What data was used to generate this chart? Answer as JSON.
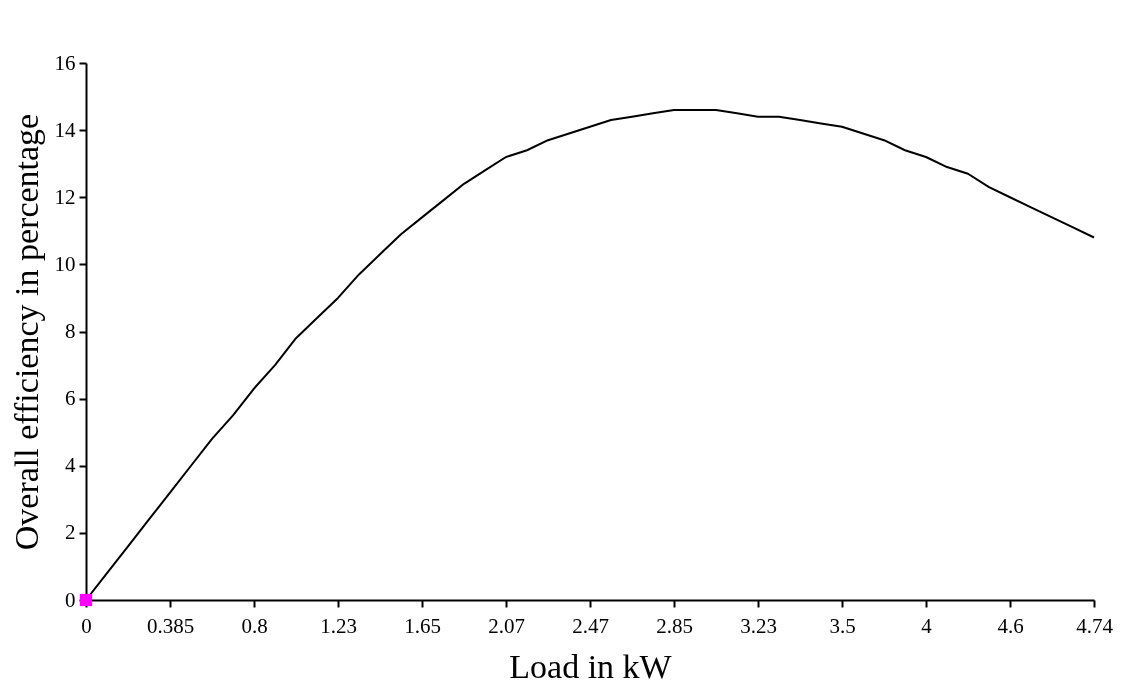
{
  "chart_data": {
    "type": "line",
    "xlabel": "Load in kW",
    "ylabel": "Overall efficiency in percentage",
    "categories": [
      "0",
      null,
      null,
      null,
      "0.385",
      null,
      null,
      null,
      "0.8",
      null,
      null,
      null,
      "1.23",
      null,
      null,
      null,
      "1.65",
      null,
      null,
      null,
      "2.07",
      null,
      null,
      null,
      "2.47",
      null,
      null,
      null,
      "2.85",
      null,
      null,
      null,
      "3.23",
      null,
      null,
      null,
      "3.5",
      null,
      null,
      null,
      "4",
      null,
      null,
      null,
      "4.6",
      null,
      null,
      null,
      "4.74"
    ],
    "series": [
      {
        "color": "#000000",
        "values": [
          0,
          0.8,
          1.6,
          2.4,
          3.2,
          4.0,
          4.8,
          5.5,
          6.3,
          7.0,
          7.8,
          8.4,
          9.0,
          9.7,
          10.3,
          10.9,
          11.4,
          11.9,
          12.4,
          12.8,
          13.2,
          13.4,
          13.7,
          13.9,
          14.1,
          14.3,
          14.4,
          14.5,
          14.6,
          14.6,
          14.6,
          14.5,
          14.4,
          14.4,
          14.3,
          14.2,
          14.1,
          13.9,
          13.7,
          13.4,
          13.2,
          12.9,
          12.7,
          12.3,
          12.0,
          11.7,
          11.4,
          11.1,
          10.8
        ]
      },
      {
        "type": "scatter",
        "color": "#ff00ff",
        "marker": "square",
        "x": [
          "0"
        ],
        "values": [
          0
        ]
      }
    ],
    "ylim": [
      0,
      16
    ],
    "yticks": [
      0,
      2,
      4,
      6,
      8,
      10,
      12,
      14,
      16
    ],
    "grid": false
  }
}
